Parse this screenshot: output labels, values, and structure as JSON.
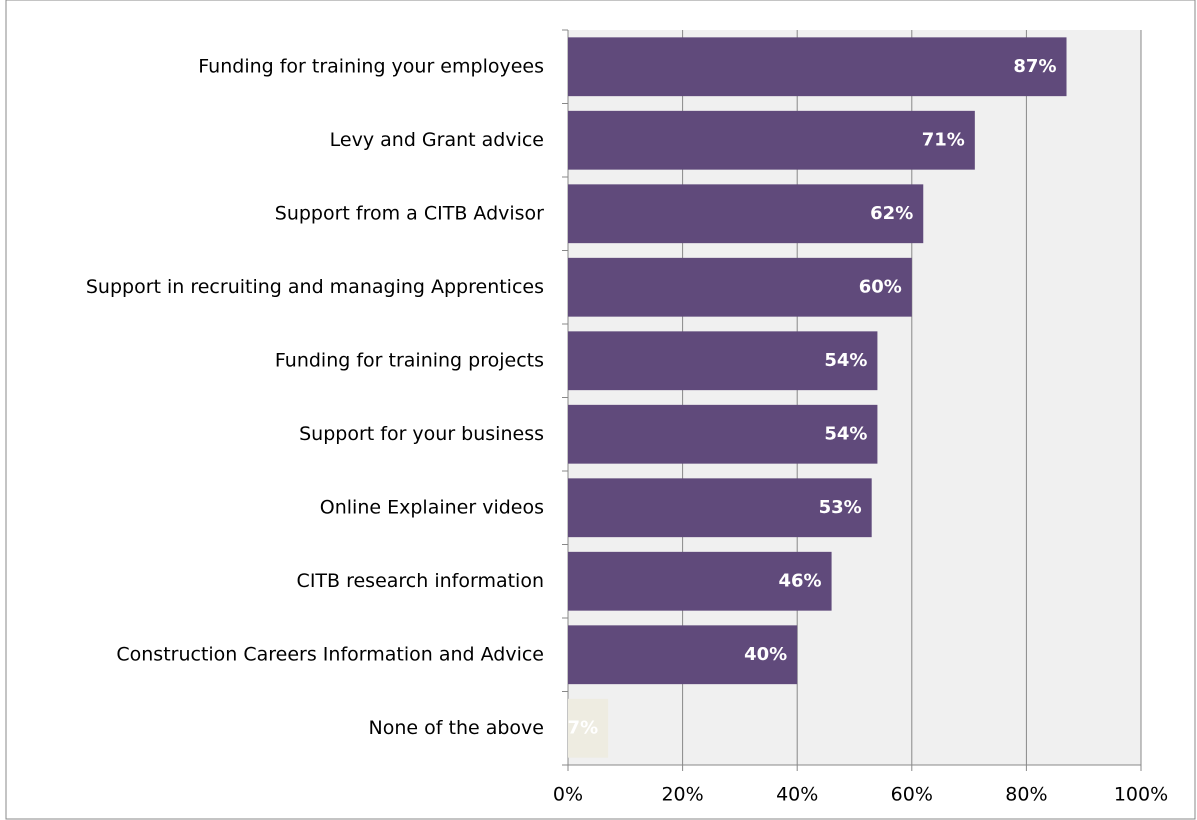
{
  "chart_data": {
    "type": "bar",
    "orientation": "horizontal",
    "categories": [
      "Funding for training your employees",
      "Levy and Grant advice",
      "Support from a CITB Advisor",
      "Support in recruiting and managing Apprentices",
      "Funding for training projects",
      "Support for your business",
      "Online Explainer videos",
      "CITB research information",
      "Construction Careers Information and Advice",
      "None of the above"
    ],
    "values": [
      87,
      71,
      62,
      60,
      54,
      54,
      53,
      46,
      40,
      7
    ],
    "value_labels": [
      "87%",
      "71%",
      "62%",
      "60%",
      "54%",
      "54%",
      "53%",
      "46%",
      "40%",
      "7%"
    ],
    "colors": [
      "#604a7b",
      "#604a7b",
      "#604a7b",
      "#604a7b",
      "#604a7b",
      "#604a7b",
      "#604a7b",
      "#604a7b",
      "#604a7b",
      "#eeece1"
    ],
    "xlim": [
      0,
      100
    ],
    "xticks": [
      {
        "value": 0,
        "label": "0%"
      },
      {
        "value": 20,
        "label": "20%"
      },
      {
        "value": 40,
        "label": "40%"
      },
      {
        "value": 60,
        "label": "60%"
      },
      {
        "value": 80,
        "label": "80%"
      },
      {
        "value": 100,
        "label": "100%"
      }
    ],
    "grid": true
  }
}
